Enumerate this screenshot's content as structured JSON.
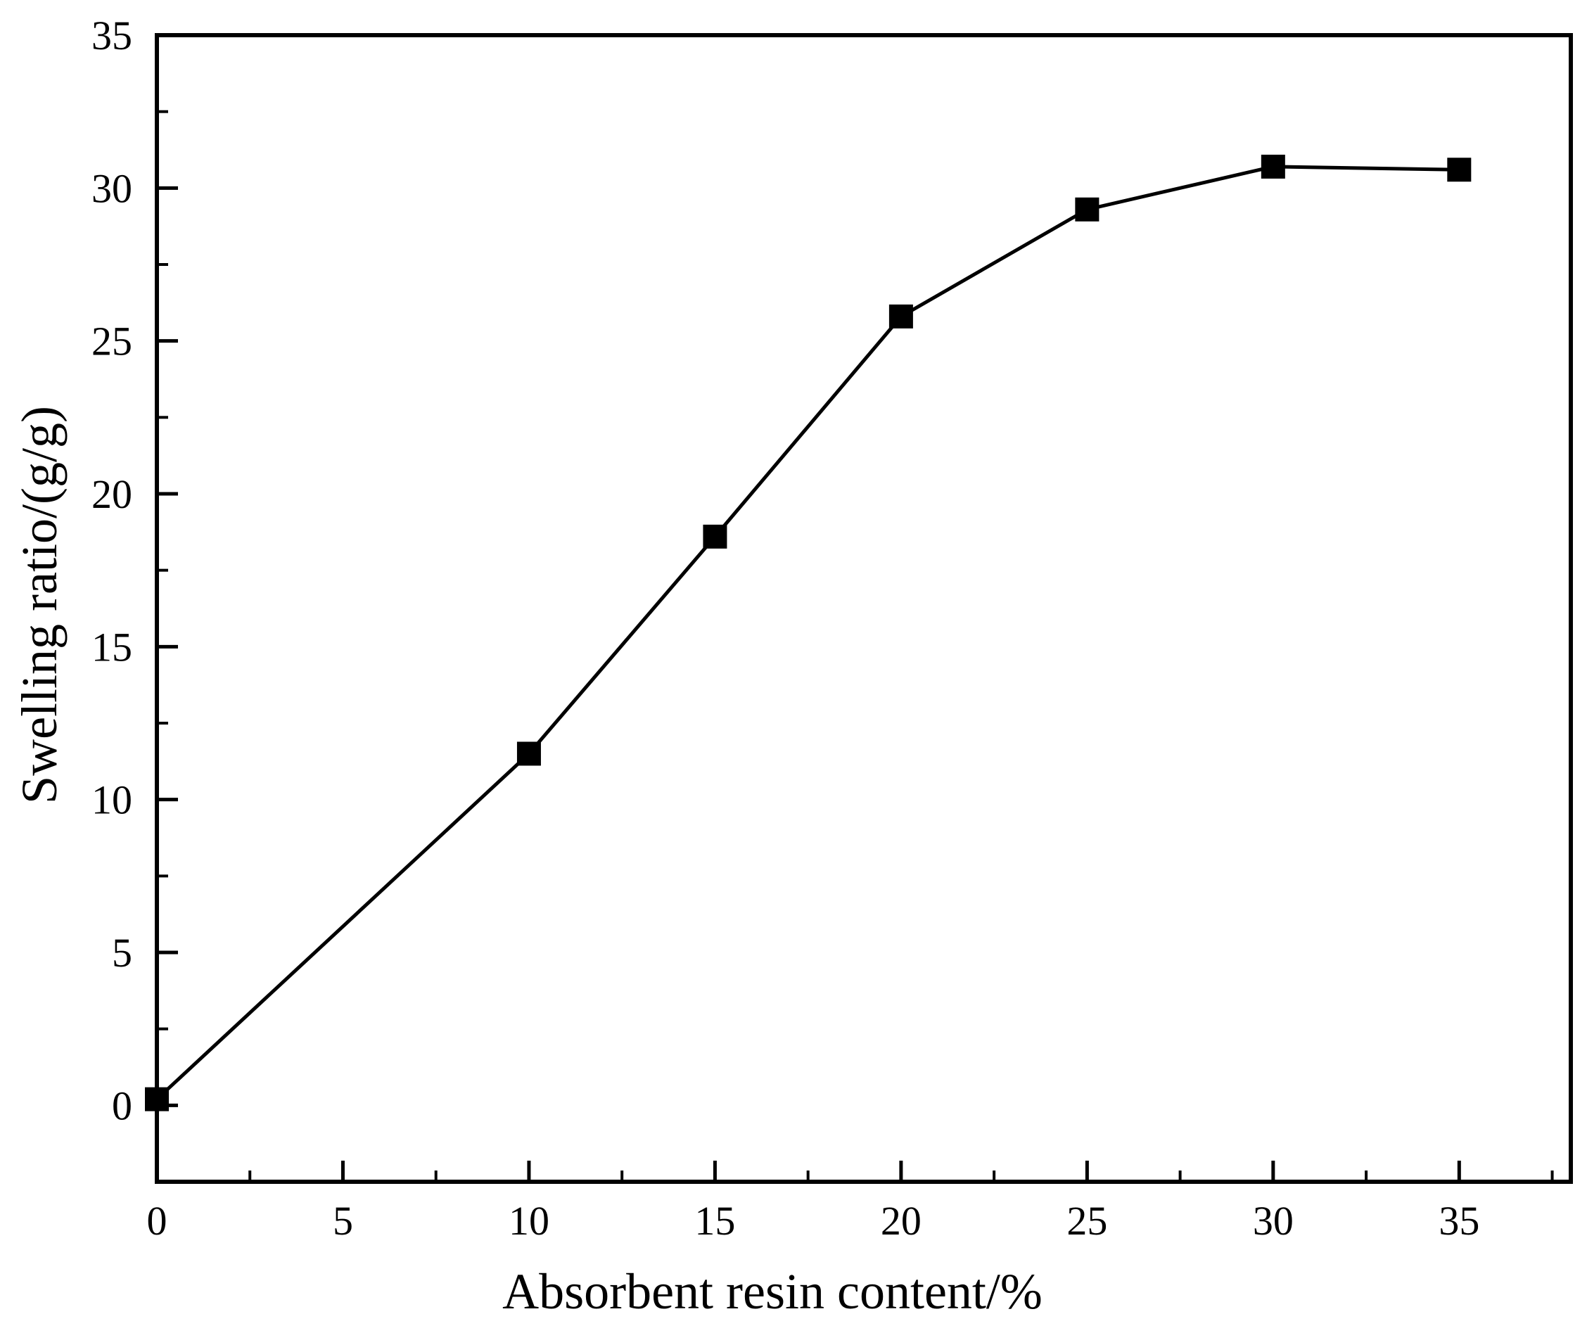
{
  "chart_data": {
    "type": "line",
    "title": "",
    "xlabel": "Absorbent resin content/%",
    "ylabel": "Swelling ratio/(g/g)",
    "xlim": [
      0,
      38
    ],
    "ylim": [
      -2.5,
      35
    ],
    "x_ticks": [
      0,
      5,
      10,
      15,
      20,
      25,
      30,
      35
    ],
    "y_ticks": [
      0,
      5,
      10,
      15,
      20,
      25,
      30,
      35
    ],
    "x_tick_labels": [
      "0",
      "5",
      "10",
      "15",
      "20",
      "25",
      "30",
      "35"
    ],
    "y_tick_labels": [
      "0",
      "5",
      "10",
      "15",
      "20",
      "25",
      "30",
      "35"
    ],
    "grid": false,
    "marker": "square",
    "line_color": "#000000",
    "series": [
      {
        "x": [
          0,
          10,
          15,
          20,
          25,
          30,
          35
        ],
        "values": [
          0.2,
          11.5,
          18.6,
          25.8,
          29.3,
          30.7,
          30.6
        ]
      }
    ]
  }
}
